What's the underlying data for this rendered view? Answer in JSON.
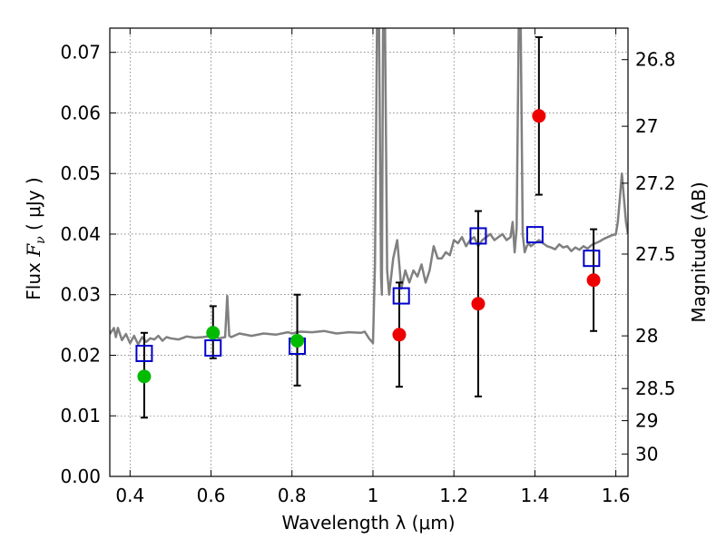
{
  "chart_data": {
    "type": "scatter",
    "xlabel": "Wavelength  λ (μm)",
    "ylabel_prefix": "Flux  ",
    "ylabel_symbol": "F",
    "ylabel_subscript": "ν",
    "ylabel_suffix": "  ( μJy )",
    "y2label": "Magnitude (AB)",
    "xlim": [
      0.35,
      1.63
    ],
    "ylim": [
      0.0,
      0.074
    ],
    "xticks": [
      0.4,
      0.6,
      0.8,
      1.0,
      1.2,
      1.4,
      1.6
    ],
    "xtick_labels": [
      "0.4",
      "0.6",
      "0.8",
      "1",
      "1.2",
      "1.4",
      "1.6"
    ],
    "yticks": [
      0.0,
      0.01,
      0.02,
      0.03,
      0.04,
      0.05,
      0.06,
      0.07
    ],
    "ytick_labels": [
      "0.00",
      "0.01",
      "0.02",
      "0.03",
      "0.04",
      "0.05",
      "0.06",
      "0.07"
    ],
    "y2ticks": [
      {
        "label": "26.8",
        "flux": 0.0688
      },
      {
        "label": "27",
        "flux": 0.0578
      },
      {
        "label": "27.2",
        "flux": 0.0484
      },
      {
        "label": "27.5",
        "flux": 0.0367
      },
      {
        "label": "28",
        "flux": 0.0232
      },
      {
        "label": "28.5",
        "flux": 0.0145
      },
      {
        "label": "29",
        "flux": 0.0092
      },
      {
        "label": "30",
        "flux": 0.0037
      }
    ],
    "grid": true,
    "colors": {
      "spectrum": "#808080",
      "green_points": "#00bb00",
      "red_points": "#ee0000",
      "model_squares": "#0000cc",
      "errorbars": "#000000"
    },
    "spectrum": {
      "x": [
        0.35,
        0.36,
        0.365,
        0.37,
        0.38,
        0.39,
        0.4,
        0.41,
        0.42,
        0.43,
        0.44,
        0.45,
        0.46,
        0.47,
        0.48,
        0.49,
        0.5,
        0.52,
        0.54,
        0.56,
        0.58,
        0.6,
        0.62,
        0.635,
        0.64,
        0.645,
        0.65,
        0.67,
        0.7,
        0.73,
        0.76,
        0.79,
        0.8,
        0.82,
        0.85,
        0.88,
        0.91,
        0.94,
        0.97,
        0.98,
        0.99,
        1.0,
        1.005,
        1.01,
        1.015,
        1.02,
        1.022,
        1.025,
        1.03,
        1.035,
        1.04,
        1.05,
        1.06,
        1.065,
        1.07,
        1.08,
        1.09,
        1.1,
        1.11,
        1.12,
        1.13,
        1.14,
        1.15,
        1.16,
        1.17,
        1.18,
        1.19,
        1.2,
        1.21,
        1.22,
        1.23,
        1.24,
        1.25,
        1.26,
        1.27,
        1.28,
        1.29,
        1.3,
        1.31,
        1.32,
        1.33,
        1.34,
        1.345,
        1.35,
        1.355,
        1.36,
        1.365,
        1.37,
        1.375,
        1.38,
        1.385,
        1.39,
        1.4,
        1.41,
        1.42,
        1.43,
        1.44,
        1.45,
        1.46,
        1.47,
        1.48,
        1.49,
        1.5,
        1.51,
        1.52,
        1.53,
        1.54,
        1.55,
        1.56,
        1.57,
        1.58,
        1.59,
        1.6,
        1.605,
        1.61,
        1.615,
        1.62,
        1.625,
        1.63
      ],
      "y": [
        0.0235,
        0.0245,
        0.023,
        0.0245,
        0.0225,
        0.0235,
        0.022,
        0.0232,
        0.0218,
        0.023,
        0.0222,
        0.0228,
        0.0226,
        0.0232,
        0.0224,
        0.023,
        0.0228,
        0.0226,
        0.0231,
        0.0229,
        0.023,
        0.0232,
        0.0228,
        0.023,
        0.0298,
        0.0232,
        0.023,
        0.0236,
        0.0232,
        0.0236,
        0.0234,
        0.0238,
        0.0236,
        0.0239,
        0.0238,
        0.024,
        0.0236,
        0.0238,
        0.0237,
        0.0239,
        0.0228,
        0.022,
        0.035,
        0.074,
        0.074,
        0.033,
        0.03,
        0.074,
        0.074,
        0.034,
        0.03,
        0.036,
        0.039,
        0.035,
        0.031,
        0.034,
        0.032,
        0.034,
        0.033,
        0.035,
        0.032,
        0.034,
        0.038,
        0.036,
        0.036,
        0.037,
        0.0365,
        0.039,
        0.0385,
        0.0395,
        0.038,
        0.039,
        0.0395,
        0.038,
        0.039,
        0.0395,
        0.04,
        0.039,
        0.0395,
        0.04,
        0.039,
        0.0395,
        0.042,
        0.037,
        0.041,
        0.074,
        0.074,
        0.04,
        0.037,
        0.038,
        0.0385,
        0.038,
        0.0385,
        0.039,
        0.0385,
        0.038,
        0.0378,
        0.0375,
        0.0383,
        0.0378,
        0.038,
        0.0372,
        0.0378,
        0.0374,
        0.038,
        0.0376,
        0.0382,
        0.0385,
        0.0388,
        0.0392,
        0.0395,
        0.0398,
        0.04,
        0.042,
        0.046,
        0.05,
        0.046,
        0.042,
        0.04
      ]
    },
    "green_points": {
      "x": [
        0.435,
        0.605,
        0.813
      ],
      "y": [
        0.0165,
        0.0237,
        0.0224
      ],
      "yerr_lower": [
        0.0068,
        0.0042,
        0.0074
      ],
      "yerr_upper": [
        0.0072,
        0.0044,
        0.0076
      ]
    },
    "red_points": {
      "x": [
        1.065,
        1.26,
        1.41,
        1.545
      ],
      "y": [
        0.0234,
        0.0285,
        0.0595,
        0.0324
      ],
      "yerr_lower": [
        0.0086,
        0.0153,
        0.013,
        0.0084
      ],
      "yerr_upper": [
        0.0086,
        0.0153,
        0.013,
        0.0084
      ]
    },
    "model_squares": {
      "x": [
        0.435,
        0.605,
        0.813,
        1.07,
        1.26,
        1.4,
        1.54
      ],
      "y": [
        0.0203,
        0.0212,
        0.0215,
        0.0298,
        0.0397,
        0.0399,
        0.036
      ]
    }
  }
}
